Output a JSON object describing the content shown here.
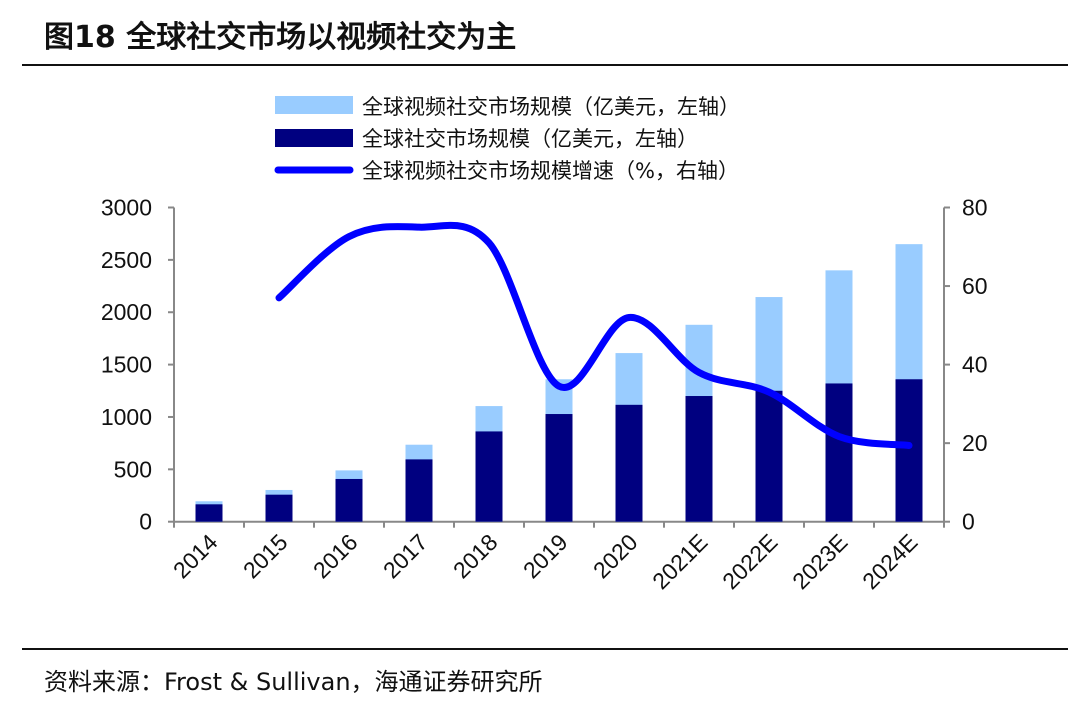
{
  "title": "图18 全球社交市场以视频社交为主",
  "source": "资料来源：Frost & Sullivan，海通证券研究所",
  "chart_data": {
    "type": "bar",
    "title": "图18 全球社交市场以视频社交为主",
    "categories": [
      "2014",
      "2015",
      "2016",
      "2017",
      "2018",
      "2019",
      "2020",
      "2021E",
      "2022E",
      "2023E",
      "2024E"
    ],
    "series": [
      {
        "name": "全球视频社交市场规模（亿美元，左轴）",
        "type": "bar",
        "axis": "left",
        "color": "#99ccff",
        "values": [
          195,
          303,
          490,
          735,
          1104,
          1360,
          1610,
          1880,
          2145,
          2400,
          2650
        ]
      },
      {
        "name": "全球社交市场规模（亿美元，左轴）",
        "type": "bar",
        "axis": "left",
        "color": "#000080",
        "values": [
          166,
          258,
          408,
          595,
          862,
          1028,
          1116,
          1200,
          1250,
          1320,
          1360
        ]
      },
      {
        "name": "全球视频社交市场规模增速（%，右轴）",
        "type": "line",
        "axis": "right",
        "color": "#0000ff",
        "values": [
          null,
          57,
          72.6,
          75,
          71,
          34.5,
          52,
          38,
          33,
          21.7,
          19.4
        ]
      }
    ],
    "yleft": {
      "min": 0,
      "max": 3000,
      "ticks": [
        "0",
        "500",
        "1000",
        "1500",
        "2000",
        "2500",
        "3000"
      ]
    },
    "yright": {
      "min": 0,
      "max": 80,
      "ticks": [
        "0",
        "20",
        "40",
        "60",
        "80"
      ]
    },
    "legend": "top-center",
    "grid": false
  }
}
